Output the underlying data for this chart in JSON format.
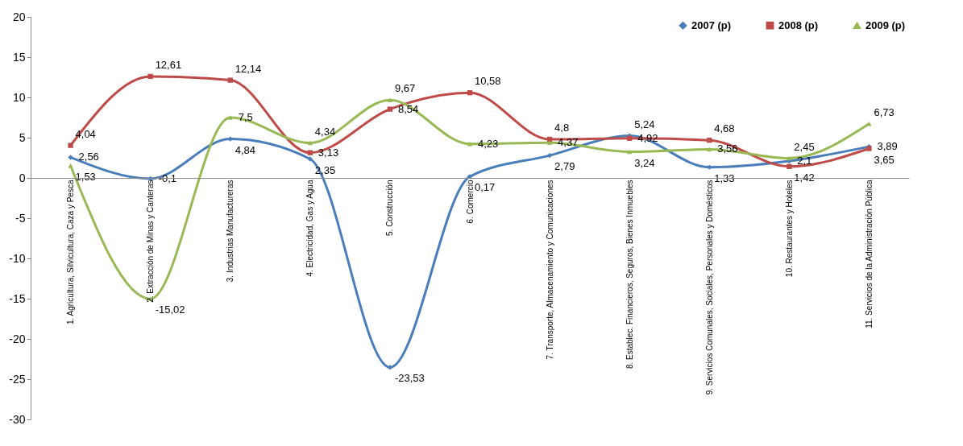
{
  "chart_data": {
    "type": "line",
    "categories": [
      "1. Agricultura, Silvicultura, Caza y Pesca",
      "2. Extracción de Minas y Canteras",
      "3. Industrias Manufactureras",
      "4. Electricidad, Gas y Agua",
      "5. Construcción",
      "6. Comercio",
      "7. Transporte, Almacenamiento y Comunicaciones",
      "8. Establec. Financieros, Seguros, Bienes Inmuebles",
      "9. Servicios Comunales, Sociales, Personales y Domésticos",
      "10. Restaurantes y Hoteles",
      "11. Servicios de la Administración Pública"
    ],
    "series": [
      {
        "name": "2007 (p)",
        "color": "#4a7ebb",
        "marker": "diamond",
        "values": [
          2.56,
          -0.1,
          4.84,
          2.35,
          -23.53,
          0.17,
          2.79,
          5.24,
          1.33,
          2.1,
          3.89
        ],
        "value_labels": [
          "2,56",
          "-0,1",
          "4,84",
          "2,35",
          "-23,53",
          "0,17",
          "2,79",
          "5,24",
          "1,33",
          "2,1",
          "3,89"
        ]
      },
      {
        "name": "2008 (p)",
        "color": "#be4b48",
        "marker": "square",
        "values": [
          4.04,
          12.61,
          12.14,
          3.13,
          8.54,
          10.58,
          4.8,
          4.92,
          4.68,
          1.42,
          3.65
        ],
        "value_labels": [
          "4,04",
          "12,61",
          "12,14",
          "3,13",
          "8,54",
          "10,58",
          "4,8",
          "4,92",
          "4,68",
          "1,42",
          "3,65"
        ]
      },
      {
        "name": "2009 (p)",
        "color": "#98b954",
        "marker": "triangle",
        "values": [
          1.53,
          -15.02,
          7.5,
          4.34,
          9.67,
          4.23,
          4.37,
          3.24,
          3.56,
          2.45,
          6.73
        ],
        "value_labels": [
          "1,53",
          "-15,02",
          "7,5",
          "4,34",
          "9,67",
          "4,23",
          "4,37",
          "3,24",
          "3,56",
          "2,45",
          "6,73"
        ]
      }
    ],
    "ylim": [
      -30,
      20
    ],
    "yticks": [
      -30,
      -25,
      -20,
      -15,
      -10,
      -5,
      0,
      5,
      10,
      15,
      20
    ],
    "legend": "top right",
    "grid": false,
    "line_style": "solid"
  }
}
